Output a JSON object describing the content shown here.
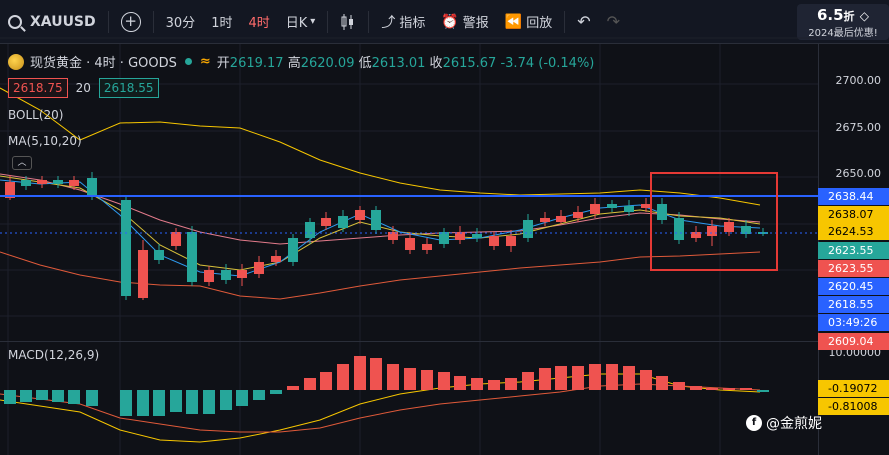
{
  "toolbar": {
    "symbol": "XAUUSD",
    "timeframes": [
      "30分",
      "1时",
      "4时",
      "日K"
    ],
    "active_timeframe": "4时",
    "indicators_label": "指标",
    "alert_label": "警报",
    "replay_label": "回放",
    "promo_discount": "6.5",
    "promo_unit": "折",
    "promo_text": "2024最后优惠!"
  },
  "legend": {
    "name": "现货黄金 · 4时 · GOODS",
    "open_label": "开",
    "open": "2619.17",
    "high_label": "高",
    "high": "2620.09",
    "low_label": "低",
    "low": "2613.01",
    "close_label": "收",
    "close": "2615.67",
    "change": "-3.74",
    "change_pct": "(-0.14%)",
    "bid": "2618.75",
    "spread": "20",
    "ask": "2618.55",
    "boll_label": "BOLL(20)",
    "ma_label": "MA(5,10,20)",
    "macd_label": "MACD(12,26,9)"
  },
  "price_scale": {
    "ticks": [
      "2700.00",
      "2675.00",
      "2650.00"
    ],
    "tags": [
      {
        "value": "2638.44",
        "bg": "#2962ff",
        "fg": "#ffffff"
      },
      {
        "value": "2638.07",
        "bg": "#f7c600",
        "fg": "#000000"
      },
      {
        "value": "2624.53",
        "bg": "#f7c600",
        "fg": "#000000"
      },
      {
        "value": "2623.55",
        "bg": "#26a69a",
        "fg": "#ffffff"
      },
      {
        "value": "2623.55",
        "bg": "#ef5350",
        "fg": "#ffffff"
      },
      {
        "value": "2620.45",
        "bg": "#2962ff",
        "fg": "#ffffff"
      },
      {
        "value": "2618.55",
        "bg": "#2962ff",
        "fg": "#ffffff"
      },
      {
        "value": "03:49:26",
        "bg": "#2962ff",
        "fg": "#ffffff"
      },
      {
        "value": "2609.04",
        "bg": "#ef5350",
        "fg": "#ffffff"
      }
    ],
    "macd_top": "10.00000",
    "macd_tags": [
      {
        "value": "-0.19072",
        "bg": "#f7c600",
        "fg": "#000000"
      },
      {
        "value": "-0.81008",
        "bg": "#f7c600",
        "fg": "#000000"
      }
    ]
  },
  "colors": {
    "up": "#26a69a",
    "down": "#ef5350",
    "hline": "#2962ff",
    "box": "#e53935"
  },
  "watermark": "@金煎妮"
}
